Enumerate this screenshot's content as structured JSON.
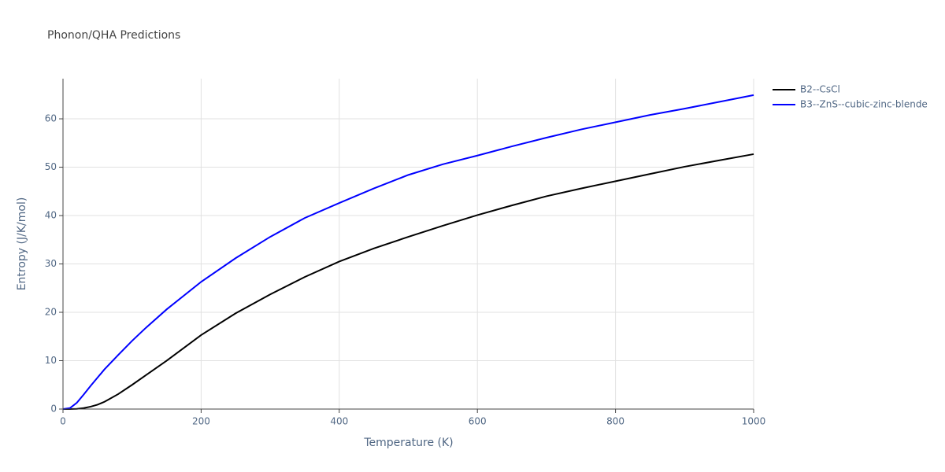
{
  "chart_data": {
    "type": "line",
    "title": "Phonon/QHA Predictions",
    "x_label": "Temperature (K)",
    "y_label": "Entropy (J/K/mol)",
    "xlim": [
      0,
      1000
    ],
    "ylim": [
      0,
      68.3
    ],
    "xticks": [
      0,
      200,
      400,
      600,
      800,
      1000
    ],
    "yticks": [
      0,
      10,
      20,
      30,
      40,
      50,
      60
    ],
    "grid": true,
    "legend": "right",
    "x": [
      0,
      10,
      20,
      30,
      40,
      50,
      60,
      80,
      100,
      120,
      150,
      200,
      250,
      300,
      350,
      400,
      450,
      500,
      550,
      600,
      650,
      700,
      750,
      800,
      850,
      900,
      950,
      1000
    ],
    "series": [
      {
        "name": "B2--CsCl",
        "color": "#000000",
        "values": [
          0,
          0,
          0.05,
          0.2,
          0.5,
          0.9,
          1.5,
          3.1,
          5.0,
          7.0,
          10.0,
          15.3,
          19.8,
          23.7,
          27.3,
          30.5,
          33.2,
          35.6,
          37.9,
          40.1,
          42.1,
          44.0,
          45.6,
          47.1,
          48.6,
          50.1,
          51.4,
          52.7
        ]
      },
      {
        "name": "B3--ZnS--cubic-zinc-blende",
        "color": "#0000ff",
        "values": [
          0,
          0.2,
          1.3,
          3.0,
          4.8,
          6.5,
          8.2,
          11.2,
          14.1,
          16.8,
          20.6,
          26.3,
          31.2,
          35.6,
          39.5,
          42.6,
          45.6,
          48.4,
          50.6,
          52.4,
          54.3,
          56.1,
          57.8,
          59.3,
          60.8,
          62.1,
          63.5,
          64.9
        ]
      }
    ]
  }
}
